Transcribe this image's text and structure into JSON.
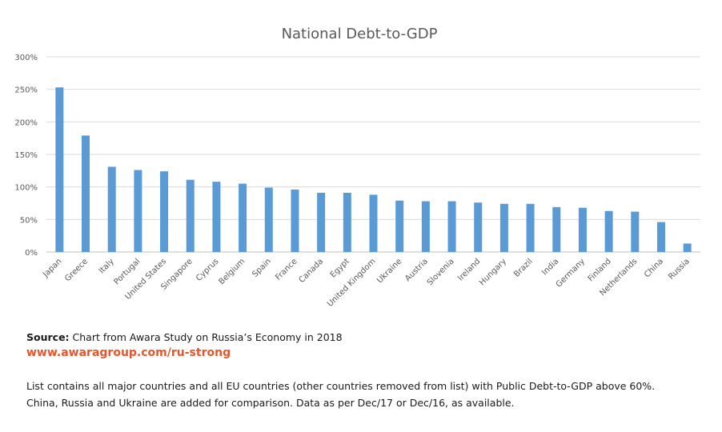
{
  "chart_data": {
    "type": "bar",
    "title": "National Debt-to-GDP",
    "xlabel": "",
    "ylabel": "",
    "ylim": [
      0,
      300
    ],
    "yticks": [
      0,
      50,
      100,
      150,
      200,
      250,
      300
    ],
    "ytick_labels": [
      "0%",
      "50%",
      "100%",
      "150%",
      "200%",
      "250%",
      "300%"
    ],
    "grid": true,
    "legend": "none",
    "bar_color": "#5b9bd5",
    "categories": [
      "Japan",
      "Greece",
      "Italy",
      "Portugal",
      "United States",
      "Singapore",
      "Cyprus",
      "Belgium",
      "Spain",
      "France",
      "Canada",
      "Egypt",
      "United Kingdom",
      "Ukraine",
      "Austria",
      "Slovenia",
      "Ireland",
      "Hungary",
      "Brazil",
      "India",
      "Germany",
      "Finland",
      "Netherlands",
      "China",
      "Russia"
    ],
    "values": [
      253,
      179,
      131,
      126,
      124,
      111,
      108,
      105,
      99,
      96,
      91,
      91,
      88,
      79,
      78,
      78,
      76,
      74,
      74,
      69,
      68,
      63,
      62,
      46,
      13
    ]
  },
  "footer": {
    "source_label": "Source:",
    "source_text": " Chart from Awara Study on Russia’s Economy in 2018",
    "link_text": "www.awaragroup.com/ru-strong",
    "link_color": "#e8552b",
    "description_line1": "List contains all major countries and all EU countries (other countries removed from list) with Public Debt-to-GDP above 60%.",
    "description_line2": "China, Russia and Ukraine are added for comparison. Data as per Dec/17 or Dec/16, as available."
  }
}
